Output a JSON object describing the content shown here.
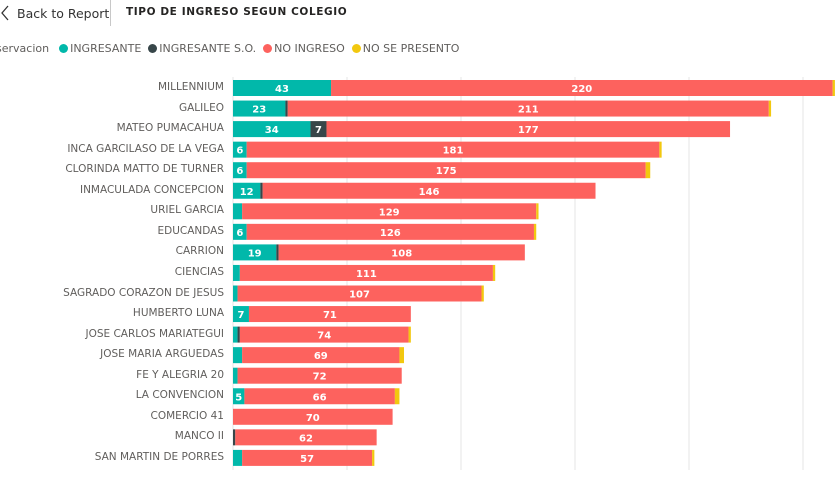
{
  "header": {
    "back_label": "Back to Report",
    "title": "TIPO DE INGRESO SEGUN COLEGIO"
  },
  "legend": {
    "title": "Observacion",
    "visible_title": "servacion",
    "items": [
      {
        "label": "INGRESANTE",
        "color": "#01B8AA"
      },
      {
        "label": "INGRESANTE S.O.",
        "color": "#374649"
      },
      {
        "label": "NO INGRESO",
        "color": "#FD625E"
      },
      {
        "label": "NO SE PRESENTO",
        "color": "#F2C80F"
      }
    ]
  },
  "chart_data": {
    "type": "bar",
    "orientation": "horizontal",
    "stacked": true,
    "title": "TIPO DE INGRESO SEGUN COLEGIO",
    "xlabel": "",
    "ylabel": "",
    "xlim": [
      0,
      265
    ],
    "grid": true,
    "legend_position": "top-left",
    "categories": [
      "MILLENNIUM",
      "GALILEO",
      "MATEO PUMACAHUA",
      "INCA GARCILASO DE LA VEGA",
      "CLORINDA MATTO DE TURNER",
      "INMACULADA CONCEPCION",
      "URIEL GARCIA",
      "EDUCANDAS",
      "CARRION",
      "CIENCIAS",
      "SAGRADO CORAZON DE JESUS",
      "HUMBERTO LUNA",
      "JOSE CARLOS MARIATEGUI",
      "JOSE MARIA ARGUEDAS",
      "FE Y ALEGRIA 20",
      "LA CONVENCION",
      "COMERCIO 41",
      "MANCO II",
      "SAN MARTIN DE PORRES"
    ],
    "series": [
      {
        "name": "INGRESANTE",
        "color": "#01B8AA",
        "values": [
          43,
          23,
          34,
          6,
          6,
          12,
          4,
          6,
          19,
          3,
          2,
          7,
          2,
          4,
          2,
          5,
          0,
          0,
          4
        ],
        "labeled": [
          true,
          true,
          true,
          true,
          true,
          true,
          false,
          true,
          true,
          false,
          false,
          true,
          false,
          false,
          false,
          true,
          false,
          false,
          false
        ]
      },
      {
        "name": "INGRESANTE S.O.",
        "color": "#374649",
        "values": [
          0,
          1,
          7,
          0,
          0,
          1,
          0,
          0,
          1,
          0,
          0,
          0,
          1,
          0,
          0,
          0,
          0,
          1,
          0
        ],
        "labeled": [
          false,
          false,
          true,
          false,
          false,
          false,
          false,
          false,
          false,
          false,
          false,
          false,
          false,
          false,
          false,
          false,
          false,
          false,
          false
        ]
      },
      {
        "name": "NO INGRESO",
        "color": "#FD625E",
        "values": [
          220,
          211,
          177,
          181,
          175,
          146,
          129,
          126,
          108,
          111,
          107,
          71,
          74,
          69,
          72,
          66,
          70,
          62,
          57
        ],
        "labeled": [
          true,
          true,
          true,
          true,
          true,
          true,
          true,
          true,
          true,
          true,
          true,
          true,
          true,
          true,
          true,
          true,
          true,
          true,
          true
        ]
      },
      {
        "name": "NO SE PRESENTO",
        "color": "#F2C80F",
        "values": [
          1,
          1,
          0,
          1,
          2,
          0,
          1,
          1,
          0,
          1,
          1,
          0,
          1,
          2,
          0,
          2,
          0,
          0,
          1
        ],
        "labeled": [
          false,
          false,
          false,
          false,
          false,
          false,
          false,
          false,
          false,
          false,
          false,
          false,
          false,
          false,
          false,
          false,
          false,
          false,
          false
        ]
      }
    ],
    "gridline_step": 50
  }
}
